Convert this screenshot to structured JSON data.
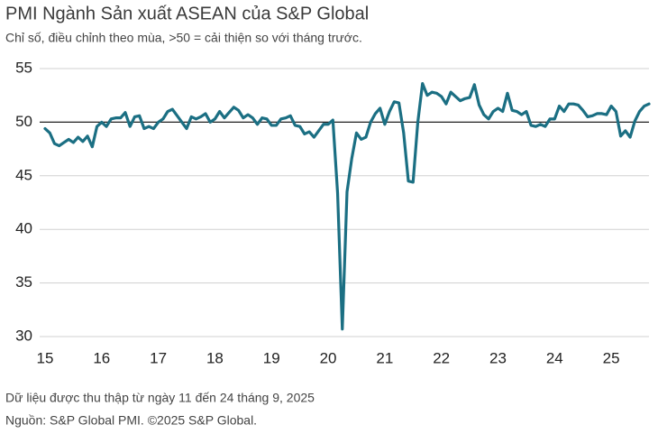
{
  "chart_data": {
    "type": "line",
    "title": "PMI Ngành Sản xuất ASEAN của S&P Global",
    "subtitle": "Chỉ số, điều chỉnh theo mùa, >50 = cải thiện so với tháng trước.",
    "notes": [
      "Dữ liệu được thu thập từ ngày 11 đến 24 tháng 9, 2025",
      "Nguồn: S&P Global PMI. ©2025 S&P Global."
    ],
    "categories": [
      "15",
      null,
      null,
      null,
      null,
      null,
      null,
      null,
      null,
      null,
      null,
      null,
      "16",
      null,
      null,
      null,
      null,
      null,
      null,
      null,
      null,
      null,
      null,
      null,
      "17",
      null,
      null,
      null,
      null,
      null,
      null,
      null,
      null,
      null,
      null,
      null,
      "18",
      null,
      null,
      null,
      null,
      null,
      null,
      null,
      null,
      null,
      null,
      null,
      "19",
      null,
      null,
      null,
      null,
      null,
      null,
      null,
      null,
      null,
      null,
      null,
      "20",
      null,
      null,
      null,
      null,
      null,
      null,
      null,
      null,
      null,
      null,
      null,
      "21",
      null,
      null,
      null,
      null,
      null,
      null,
      null,
      null,
      null,
      null,
      null,
      "22",
      null,
      null,
      null,
      null,
      null,
      null,
      null,
      null,
      null,
      null,
      null,
      "23",
      null,
      null,
      null,
      null,
      null,
      null,
      null,
      null,
      null,
      null,
      null,
      "24",
      null,
      null,
      null,
      null,
      null,
      null,
      null,
      null,
      null,
      null,
      null,
      "25",
      null,
      null,
      null,
      null,
      null,
      null,
      null,
      null
    ],
    "values": [
      49.4,
      49.0,
      48.0,
      47.8,
      48.1,
      48.4,
      48.1,
      48.6,
      48.2,
      48.7,
      47.7,
      49.6,
      50.0,
      49.6,
      50.3,
      50.4,
      50.4,
      50.9,
      49.6,
      50.5,
      50.6,
      49.4,
      49.6,
      49.4,
      50.0,
      50.3,
      51.0,
      51.2,
      50.6,
      50.0,
      49.4,
      50.5,
      50.3,
      50.5,
      50.8,
      50.0,
      50.3,
      51.0,
      50.4,
      50.9,
      51.4,
      51.1,
      50.4,
      50.7,
      50.4,
      49.8,
      50.4,
      50.3,
      49.7,
      49.7,
      50.3,
      50.4,
      50.6,
      49.7,
      49.6,
      48.9,
      49.1,
      48.6,
      49.2,
      49.8,
      49.8,
      50.2,
      43.4,
      30.7,
      43.5,
      46.6,
      49.0,
      48.4,
      48.6,
      50.0,
      50.8,
      51.3,
      49.8,
      51.0,
      51.9,
      51.8,
      49.0,
      44.5,
      44.4,
      50.0,
      53.6,
      52.5,
      52.8,
      52.7,
      52.4,
      51.7,
      52.8,
      52.4,
      52.0,
      52.2,
      52.3,
      53.5,
      51.6,
      50.7,
      50.3,
      51.0,
      51.3,
      51.0,
      52.7,
      51.1,
      51.0,
      50.7,
      51.0,
      49.7,
      49.6,
      49.8,
      49.6,
      50.3,
      50.3,
      51.5,
      51.0,
      51.7,
      51.7,
      51.6,
      51.1,
      50.5,
      50.6,
      50.8,
      50.8,
      50.7,
      51.5,
      51.0,
      48.7,
      49.2,
      48.6,
      50.1,
      51.0,
      51.5,
      51.7
    ],
    "color": "#1b6f83",
    "ylim": [
      30,
      55
    ],
    "yticks": [
      30,
      35,
      40,
      45,
      50,
      55
    ],
    "grid": true,
    "reference_line": 50
  }
}
